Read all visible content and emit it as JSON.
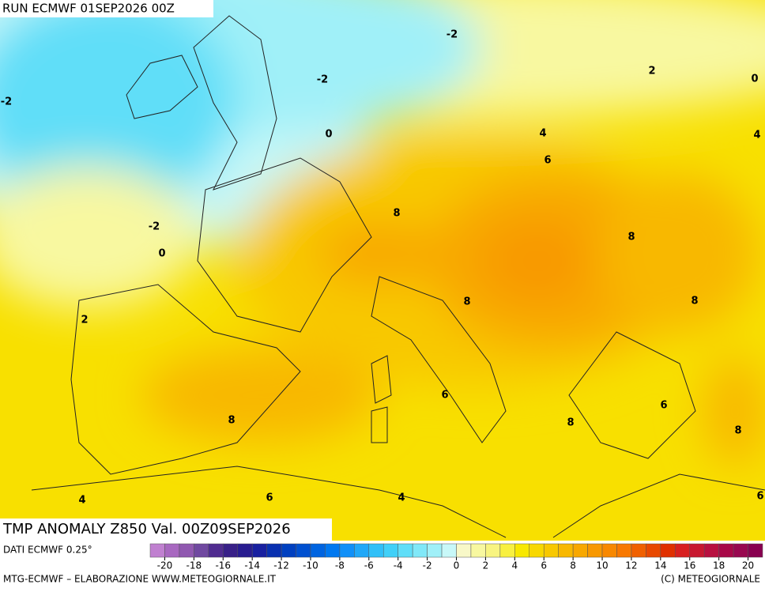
{
  "header": {
    "run": "RUN ECMWF 01SEP2026 00Z"
  },
  "map": {
    "title": "TMP ANOMALY Z850 Val. 00Z09SEP2026",
    "contour_labels": [
      -2,
      -2,
      -2,
      2,
      0,
      0,
      4,
      4,
      6,
      8,
      -2,
      8,
      0,
      8,
      8,
      2,
      6,
      6,
      8,
      8,
      8,
      4,
      6,
      4,
      6
    ]
  },
  "legend": {
    "source": "DATI ECMWF 0.25°",
    "range": [
      -21,
      21
    ],
    "ticks": [
      -20,
      -18,
      -16,
      -14,
      -12,
      -10,
      -8,
      -6,
      -4,
      -2,
      0,
      2,
      4,
      6,
      8,
      10,
      12,
      14,
      16,
      18,
      20
    ],
    "colors": [
      "#c080d0",
      "#a868c0",
      "#9058b0",
      "#7048a0",
      "#502c90",
      "#382088",
      "#281c90",
      "#1820a0",
      "#0830b0",
      "#0040c0",
      "#0050d0",
      "#0064e0",
      "#0078f0",
      "#1090f8",
      "#20a8f8",
      "#30c0f8",
      "#40d0f8",
      "#60def8",
      "#80e8f8",
      "#a0f0f8",
      "#c8f8f8",
      "#f8f8c8",
      "#f8f8a0",
      "#f8f480",
      "#f8f040",
      "#f8e800",
      "#f8d800",
      "#f8c800",
      "#f8b800",
      "#f8a800",
      "#f89800",
      "#f88800",
      "#f87800",
      "#f06000",
      "#e84800",
      "#e03000",
      "#d82020",
      "#c81830",
      "#b81040",
      "#a80848",
      "#980850",
      "#880050"
    ]
  },
  "footer": {
    "left": "MTG-ECMWF – ELABORAZIONE WWW.METEOGIORNALE.IT",
    "right": "(C) METEOGIORNALE"
  }
}
